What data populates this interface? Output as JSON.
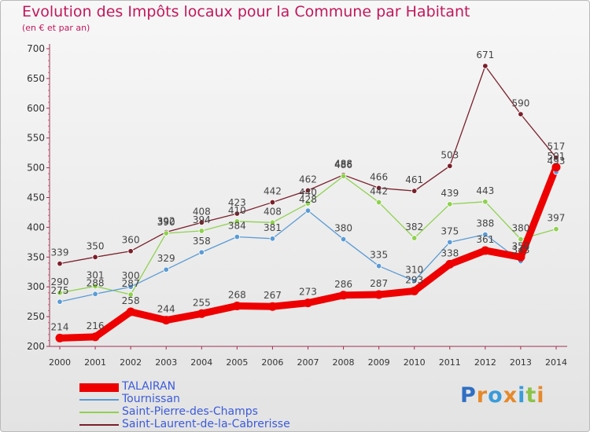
{
  "title": "Evolution des Impôts locaux pour la Commune par Habitant",
  "subtitle": "(en € et par an)",
  "logo": {
    "text": "Proxiti",
    "letter_colors": [
      "#2f6fc3",
      "#e6892b",
      "#3a9bd9",
      "#e6892b",
      "#3a9bd9",
      "#8bc34a",
      "#e6892b"
    ]
  },
  "chart_data": {
    "type": "line",
    "x": [
      "2000",
      "2001",
      "2002",
      "2003",
      "2004",
      "2005",
      "2006",
      "2007",
      "2008",
      "2009",
      "2010",
      "2011",
      "2012",
      "2013",
      "2014"
    ],
    "ylim": [
      200,
      700
    ],
    "yticks": [
      200,
      250,
      300,
      350,
      400,
      450,
      500,
      550,
      600,
      650,
      700
    ],
    "grid": false,
    "legend_position": "bottom-left",
    "series": [
      {
        "name": "TALAIRAN",
        "color": "#ee0000",
        "values": [
          214,
          216,
          258,
          244,
          255,
          268,
          267,
          273,
          286,
          287,
          293,
          338,
          361,
          350,
          501
        ],
        "labels": [
          "214",
          "216",
          "258",
          "244",
          "255",
          "268",
          "267",
          "273",
          "286",
          "287",
          "293",
          "338",
          "361",
          "350",
          "501"
        ]
      },
      {
        "name": "Tournissan",
        "color": "#5b9bd5",
        "values": [
          275,
          288,
          300,
          329,
          358,
          384,
          381,
          428,
          380,
          335,
          310,
          375,
          388,
          343,
          493
        ],
        "labels": [
          "275",
          "288",
          "300",
          "329",
          "358",
          "384",
          "381",
          "428",
          "380",
          "335",
          "310",
          "375",
          "388",
          "343",
          "493"
        ]
      },
      {
        "name": "Saint-Pierre-des-Champs",
        "color": "#8fd14f",
        "values": [
          290,
          301,
          287,
          390,
          394,
          410,
          408,
          440,
          486,
          442,
          382,
          439,
          443,
          380,
          397
        ],
        "labels": [
          "290",
          "301",
          "287",
          "390",
          "394",
          "410",
          "408",
          "440",
          "486",
          "442",
          "382",
          "439",
          "443",
          "380",
          "397"
        ]
      },
      {
        "name": "Saint-Laurent-de-la-Cabrerisse",
        "color": "#7a1f2b",
        "values": [
          339,
          350,
          360,
          392,
          408,
          423,
          442,
          462,
          488,
          466,
          461,
          503,
          671,
          590,
          517
        ],
        "labels": [
          "339",
          "350",
          "360",
          "392",
          "408",
          "423",
          "442",
          "462",
          "488",
          "466",
          "461",
          "503",
          "671",
          "590",
          "517"
        ]
      }
    ]
  }
}
